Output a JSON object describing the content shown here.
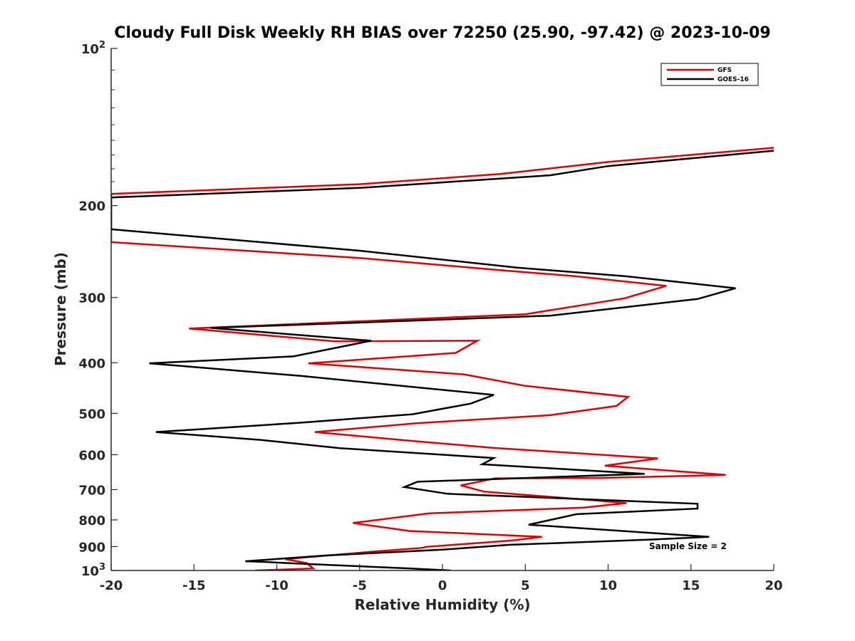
{
  "chart_data": {
    "type": "line",
    "title": "Cloudy Full Disk Weekly RH BIAS over 72250 (25.90, -97.42) @ 2023-10-09",
    "xlabel": "Relative Humidity (%)",
    "ylabel": "Pressure (mb)",
    "xlim": [
      -20,
      20
    ],
    "ylim": [
      100,
      1000
    ],
    "y_scale": "log",
    "y_reversed": true,
    "grid": false,
    "legend_position": "top-right",
    "x_ticks": [
      -20,
      -15,
      -10,
      -5,
      0,
      5,
      10,
      15,
      20
    ],
    "x_tick_labels": [
      "-20",
      "-15",
      "-10",
      "-5",
      "0",
      "5",
      "10",
      "15",
      "20"
    ],
    "y_ticks": [
      100,
      200,
      300,
      400,
      500,
      600,
      700,
      800,
      900,
      1000
    ],
    "y_tick_labels": [
      {
        "base": "10",
        "exp": "2"
      },
      {
        "base": "200",
        "exp": ""
      },
      {
        "base": "300",
        "exp": ""
      },
      {
        "base": "400",
        "exp": ""
      },
      {
        "base": "500",
        "exp": ""
      },
      {
        "base": "600",
        "exp": ""
      },
      {
        "base": "700",
        "exp": ""
      },
      {
        "base": "800",
        "exp": ""
      },
      {
        "base": "900",
        "exp": ""
      },
      {
        "base": "10",
        "exp": "3"
      }
    ],
    "series": [
      {
        "name": "GFS",
        "color": "#e00000",
        "points": [
          [
            20,
            155
          ],
          [
            10,
            165
          ],
          [
            3.5,
            174
          ],
          [
            -5,
            182
          ],
          [
            -20,
            190
          ],
          [
            -20,
            235
          ],
          [
            -5,
            252
          ],
          [
            3.5,
            266
          ],
          [
            8,
            273
          ],
          [
            13.5,
            285
          ],
          [
            11,
            301
          ],
          [
            5,
            323
          ],
          [
            -15.3,
            344
          ],
          [
            -6.5,
            364
          ],
          [
            2.1,
            363
          ],
          [
            0.8,
            383
          ],
          [
            -8.1,
            401
          ],
          [
            1.3,
            421
          ],
          [
            5,
            443
          ],
          [
            11.2,
            465
          ],
          [
            10.5,
            484
          ],
          [
            6.5,
            504
          ],
          [
            -1.5,
            522
          ],
          [
            -7.7,
            543
          ],
          [
            -2,
            564
          ],
          [
            3,
            582
          ],
          [
            13,
            610
          ],
          [
            9.8,
            630
          ],
          [
            17.1,
            656
          ],
          [
            9.5,
            665
          ],
          [
            3.2,
            666
          ],
          [
            1.1,
            687
          ],
          [
            2.5,
            706
          ],
          [
            8.5,
            731
          ],
          [
            11.1,
            743
          ],
          [
            8.5,
            758
          ],
          [
            -0.8,
            777
          ],
          [
            -5.4,
            811
          ],
          [
            -2,
            840
          ],
          [
            6,
            862
          ],
          [
            4.2,
            876
          ],
          [
            -1,
            901
          ],
          [
            -1.2,
            905
          ],
          [
            -4,
            919
          ],
          [
            -9.5,
            951
          ],
          [
            -8.2,
            968
          ],
          [
            -7.8,
            991
          ],
          [
            -11.3,
            1000
          ]
        ]
      },
      {
        "name": "GOES-16",
        "color": "#000000",
        "points": [
          [
            20,
            157
          ],
          [
            10,
            168
          ],
          [
            6.5,
            175
          ],
          [
            -5,
            185
          ],
          [
            -20,
            193
          ],
          [
            -20,
            222
          ],
          [
            -5,
            244
          ],
          [
            4.5,
            263
          ],
          [
            11,
            273
          ],
          [
            17.7,
            288
          ],
          [
            15.4,
            302
          ],
          [
            6.5,
            325
          ],
          [
            -14,
            343
          ],
          [
            -4.3,
            363
          ],
          [
            -9,
            389
          ],
          [
            -17.7,
            401
          ],
          [
            -8.5,
            424
          ],
          [
            3.1,
            461
          ],
          [
            1.7,
            479
          ],
          [
            -1.8,
            502
          ],
          [
            -8.5,
            521
          ],
          [
            -17.3,
            543
          ],
          [
            -11,
            562
          ],
          [
            -6.2,
            583
          ],
          [
            3.1,
            609
          ],
          [
            2.4,
            626
          ],
          [
            12.2,
            653
          ],
          [
            -1.5,
            676
          ],
          [
            -2.3,
            692
          ],
          [
            0.3,
            713
          ],
          [
            15.4,
            745
          ],
          [
            15.4,
            761
          ],
          [
            8.1,
            780
          ],
          [
            5.2,
            817
          ],
          [
            16.1,
            862
          ],
          [
            12.8,
            872
          ],
          [
            4,
            893
          ],
          [
            0,
            912
          ],
          [
            -7,
            936
          ],
          [
            -11.9,
            960
          ],
          [
            -10.7,
            963
          ],
          [
            -9,
            969
          ],
          [
            -2,
            991
          ],
          [
            0.5,
            1000
          ]
        ]
      }
    ],
    "annotations": [
      "Sample Size = 2"
    ]
  },
  "legend": {
    "items": [
      {
        "label": "GFS",
        "color": "#e00000"
      },
      {
        "label": "GOES-16",
        "color": "#000000"
      }
    ]
  }
}
